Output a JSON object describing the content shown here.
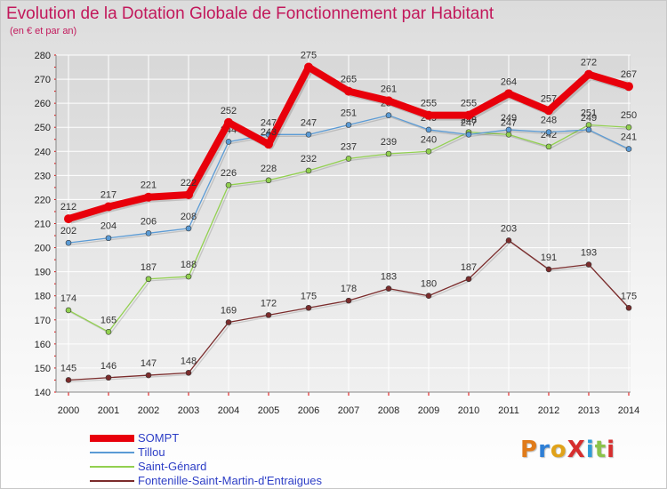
{
  "chart_data": {
    "type": "line",
    "title": "Evolution de la Dotation Globale de Fonctionnement par Habitant",
    "subtitle": "(en € et par an)",
    "xlabel": "",
    "ylabel": "",
    "x": [
      "2000",
      "2001",
      "2002",
      "2003",
      "2004",
      "2005",
      "2006",
      "2007",
      "2008",
      "2009",
      "2010",
      "2011",
      "2012",
      "2013",
      "2014"
    ],
    "ylim": [
      140,
      280
    ],
    "yticks": [
      140,
      150,
      160,
      170,
      180,
      190,
      200,
      210,
      220,
      230,
      240,
      250,
      260,
      270,
      280
    ],
    "grid": true,
    "legend_position": "bottom-left",
    "series": [
      {
        "name": "SOMPT",
        "color": "#e8000b",
        "values": [
          212,
          217,
          221,
          222,
          252,
          243,
          275,
          265,
          261,
          255,
          255,
          264,
          257,
          272,
          267
        ]
      },
      {
        "name": "Tillou",
        "color": "#5b9bd5",
        "values": [
          202,
          204,
          206,
          208,
          244,
          247,
          247,
          251,
          255,
          249,
          247,
          249,
          248,
          249,
          241
        ]
      },
      {
        "name": "Saint-Génard",
        "color": "#92d050",
        "values": [
          174,
          165,
          187,
          188,
          226,
          228,
          232,
          237,
          239,
          240,
          248,
          247,
          242,
          251,
          250
        ]
      },
      {
        "name": "Fontenille-Saint-Martin-d'Entraigues",
        "color": "#7b2c2c",
        "values": [
          145,
          146,
          147,
          148,
          169,
          172,
          175,
          178,
          183,
          180,
          187,
          203,
          191,
          193,
          175
        ]
      }
    ]
  },
  "logo": {
    "text": "ProXiti"
  },
  "colors": {
    "title": "#c2185b",
    "grid": "#ffffff",
    "legend_text": "#2d3ec6"
  }
}
